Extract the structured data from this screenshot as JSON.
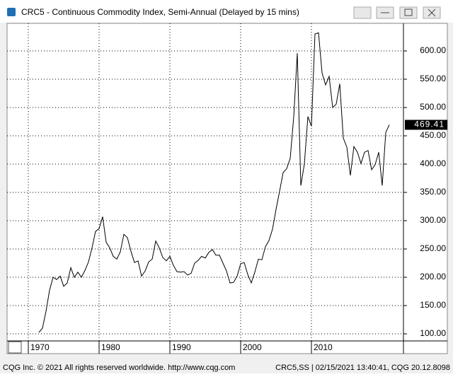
{
  "window_title": "CRC5 - Continuous Commodity Index, Semi-Annual (Delayed by 15 mins)",
  "footer_left": "CQG Inc. © 2021 All rights reserved worldwide. http://www.cqg.com",
  "footer_right": "CRC5,SS | 02/15/2021 13:40:41, CQG 20.12.8098",
  "chart_data": {
    "type": "line",
    "color": "#000000",
    "grid": true,
    "x": [
      1971.5,
      1972,
      1972.5,
      1973,
      1973.5,
      1974,
      1974.5,
      1975,
      1975.5,
      1976,
      1976.5,
      1977,
      1977.5,
      1978,
      1978.5,
      1979,
      1979.5,
      1980,
      1980.5,
      1981,
      1981.5,
      1982,
      1982.5,
      1983,
      1983.5,
      1984,
      1984.5,
      1985,
      1985.5,
      1986,
      1986.5,
      1987,
      1987.5,
      1988,
      1988.5,
      1989,
      1989.5,
      1990,
      1990.5,
      1991,
      1991.5,
      1992,
      1992.5,
      1993,
      1993.5,
      1994,
      1994.5,
      1995,
      1995.5,
      1996,
      1996.5,
      1997,
      1997.5,
      1998,
      1998.5,
      1999,
      1999.5,
      2000,
      2000.5,
      2001,
      2001.5,
      2002,
      2002.5,
      2003,
      2003.5,
      2004,
      2004.5,
      2005,
      2005.5,
      2006,
      2006.5,
      2007,
      2007.5,
      2008,
      2008.5,
      2009,
      2009.5,
      2010,
      2010.5,
      2011,
      2011.5,
      2012,
      2012.5,
      2013,
      2013.5,
      2014,
      2014.5,
      2015,
      2015.5,
      2016,
      2016.5,
      2017,
      2017.5,
      2018,
      2018.5,
      2019,
      2019.5,
      2020,
      2020.5,
      2021
    ],
    "values": [
      102.5,
      110,
      140,
      177,
      200,
      196,
      202,
      184,
      190,
      217,
      200,
      209,
      200,
      212,
      227,
      252,
      281,
      286,
      307,
      262,
      252,
      237,
      232,
      245,
      276,
      270,
      246,
      226,
      229,
      202,
      211,
      227,
      232,
      264,
      252,
      235,
      229,
      237,
      221,
      210,
      209,
      210,
      204,
      207,
      225,
      230,
      237,
      234,
      244,
      249,
      239,
      239,
      225,
      211,
      190,
      191,
      202,
      224,
      226,
      205,
      190,
      209,
      232,
      231,
      254,
      265,
      285,
      320,
      352,
      385,
      392,
      410,
      484,
      596,
      362,
      400,
      484,
      467,
      630,
      632,
      561,
      540,
      555,
      500,
      506,
      542,
      446,
      430,
      380,
      431,
      421,
      401,
      421,
      424,
      390,
      399,
      421,
      362,
      456,
      469.41
    ],
    "xlim": [
      1967,
      2023
    ],
    "xticks": [
      1970,
      1980,
      1990,
      2000,
      2010
    ],
    "ylim": [
      87.5,
      648.75
    ],
    "yticks": [
      {
        "value": 100,
        "label": "100.00"
      },
      {
        "value": 150,
        "label": "150.00"
      },
      {
        "value": 200,
        "label": "200.00"
      },
      {
        "value": 250,
        "label": "250.00"
      },
      {
        "value": 300,
        "label": "300.00"
      },
      {
        "value": 350,
        "label": "350.00"
      },
      {
        "value": 400,
        "label": "400.00"
      },
      {
        "value": 450,
        "label": "450.00"
      },
      {
        "value": 500,
        "label": "500.00"
      },
      {
        "value": 550,
        "label": "550.00"
      },
      {
        "value": 600,
        "label": "600.00"
      }
    ]
  }
}
